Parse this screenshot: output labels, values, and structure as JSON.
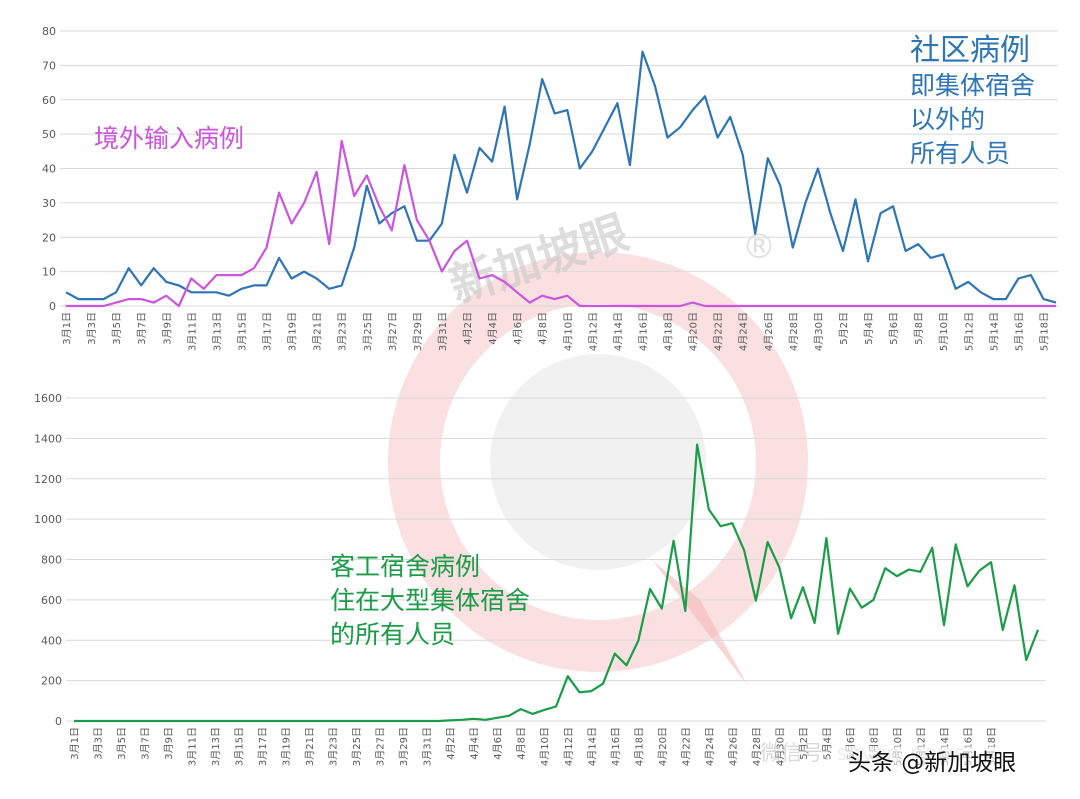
{
  "chart_data": [
    {
      "type": "line",
      "ylim": [
        0,
        80
      ],
      "yticks": [
        0,
        10,
        20,
        30,
        40,
        50,
        60,
        70,
        80
      ],
      "grid": true,
      "x_tick_labels": [
        "3月1日",
        "3月3日",
        "3月5日",
        "3月7日",
        "3月9日",
        "3月11日",
        "3月13日",
        "3月15日",
        "3月17日",
        "3月19日",
        "3月21日",
        "3月23日",
        "3月25日",
        "3月27日",
        "3月29日",
        "3月31日",
        "4月2日",
        "4月4日",
        "4月6日",
        "4月8日",
        "4月10日",
        "4月12日",
        "4月14日",
        "4月16日",
        "4月18日",
        "4月20日",
        "4月22日",
        "4月24日",
        "4月26日",
        "4月28日",
        "4月30日",
        "5月2日",
        "5月4日",
        "5月6日",
        "5月8日",
        "5月10日",
        "5月12日",
        "5月14日",
        "5月16日",
        "5月18日"
      ],
      "series": [
        {
          "color": "#2e75b6",
          "label_lines": [
            "社区病例",
            "即集体宿舍",
            "以外的",
            "所有人员"
          ],
          "values": [
            4,
            2,
            2,
            2,
            4,
            11,
            6,
            11,
            7,
            6,
            4,
            4,
            4,
            3,
            5,
            6,
            6,
            14,
            8,
            10,
            8,
            5,
            6,
            17,
            35,
            24,
            27,
            29,
            19,
            19,
            24,
            44,
            33,
            46,
            42,
            58,
            31,
            47,
            66,
            56,
            57,
            40,
            45,
            52,
            59,
            41,
            74,
            64,
            49,
            52,
            57,
            61,
            49,
            55,
            44,
            21,
            43,
            35,
            17,
            30,
            40,
            27,
            16,
            31,
            13,
            27,
            29,
            16,
            18,
            14,
            15,
            5,
            7,
            4,
            2,
            2,
            8,
            9,
            2,
            1
          ]
        },
        {
          "color": "#cc55dd",
          "label_lines": [
            "境外输入病例"
          ],
          "values": [
            0,
            0,
            0,
            0,
            1,
            2,
            2,
            1,
            3,
            0,
            8,
            5,
            9,
            9,
            9,
            11,
            17,
            33,
            24,
            30,
            39,
            18,
            48,
            32,
            38,
            29,
            22,
            41,
            25,
            19,
            10,
            16,
            19,
            8,
            9,
            7,
            4,
            1,
            3,
            2,
            3,
            0,
            0,
            0,
            0,
            0,
            0,
            0,
            0,
            0,
            1,
            0,
            0,
            0,
            0,
            0,
            0,
            0,
            0,
            0,
            0,
            0,
            0,
            0,
            0,
            0,
            0,
            0,
            0,
            0,
            0,
            0,
            0,
            0,
            0,
            0,
            0,
            0,
            0,
            0
          ]
        }
      ]
    },
    {
      "type": "line",
      "ylim": [
        0,
        1600
      ],
      "yticks": [
        0,
        200,
        400,
        600,
        800,
        1000,
        1200,
        1400,
        1600
      ],
      "grid": true,
      "x_tick_labels": [
        "3月1日",
        "3月3日",
        "3月5日",
        "3月7日",
        "3月9日",
        "3月11日",
        "3月13日",
        "3月15日",
        "3月17日",
        "3月19日",
        "3月21日",
        "3月23日",
        "3月25日",
        "3月27日",
        "3月29日",
        "3月31日",
        "4月2日",
        "4月4日",
        "4月6日",
        "4月8日",
        "4月10日",
        "4月12日",
        "4月14日",
        "4月16日",
        "4月18日",
        "4月20日",
        "4月22日",
        "4月24日",
        "4月26日",
        "4月28日",
        "4月30日",
        "5月2日",
        "5月4日",
        "5月6日",
        "5月8日",
        "5月10日",
        "5月12日",
        "5月14日",
        "5月16日",
        "5月18日"
      ],
      "series": [
        {
          "color": "#1a9c48",
          "label_lines": [
            "客工宿舍病例",
            "住在大型集体宿舍",
            "的所有人员"
          ],
          "values": [
            0,
            0,
            0,
            0,
            0,
            0,
            0,
            0,
            0,
            0,
            0,
            0,
            0,
            0,
            0,
            0,
            0,
            0,
            0,
            0,
            0,
            0,
            0,
            0,
            0,
            0,
            0,
            0,
            0,
            0,
            0,
            0,
            3,
            6,
            11,
            6,
            16,
            26,
            59,
            35,
            55,
            72,
            222,
            142,
            148,
            185,
            334,
            276,
            398,
            654,
            557,
            893,
            545,
            1369,
            1048,
            965,
            980,
            846,
            596,
            886,
            760,
            509,
            663,
            486,
            906,
            432,
            656,
            561,
            600,
            757,
            718,
            750,
            739,
            858,
            475,
            875,
            667,
            744,
            787,
            451,
            672,
            302,
            452
          ]
        }
      ]
    }
  ],
  "watermark": {
    "text": "新加坡眼",
    "registered": "®",
    "footer": "头条 @新加坡眼",
    "footer_faded": "微信号: sgyan_news",
    "brand_color": "#e63b3b"
  }
}
